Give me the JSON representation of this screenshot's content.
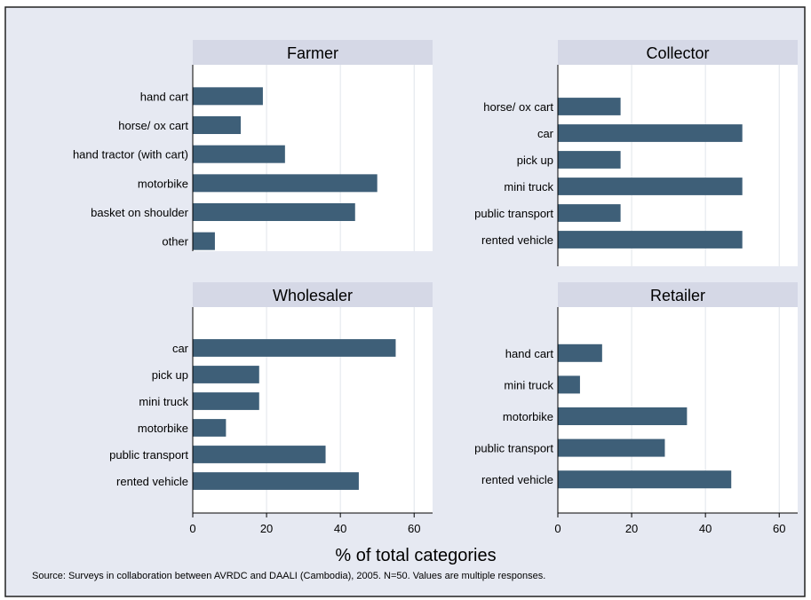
{
  "chart_data": {
    "type": "bar",
    "orientation": "horizontal",
    "xlabel": "% of total categories",
    "note": "Source: Surveys in collaboration between AVRDC and DAALI (Cambodia), 2005. N=50. Values are multiple responses.",
    "xlim": [
      0,
      65
    ],
    "x_ticks": [
      "0",
      "20",
      "40",
      "60"
    ],
    "grid": true,
    "colors": {
      "bar": "#3e5f78",
      "background": "#e6e9f2",
      "plot_area": "#ffffff",
      "panel_title_bg": "#d5d8e6",
      "grid": "#e0e4ea"
    },
    "panels": [
      {
        "title": "Farmer",
        "categories": [
          "hand cart",
          "horse/ ox cart",
          "hand tractor (with cart)",
          "motorbike",
          "basket on shoulder",
          "other"
        ],
        "values": [
          19,
          13,
          25,
          50,
          44,
          6
        ]
      },
      {
        "title": "Collector",
        "categories": [
          "horse/ ox cart",
          "car",
          "pick up",
          "mini truck",
          "public transport",
          "rented vehicle"
        ],
        "values": [
          17,
          50,
          17,
          50,
          17,
          50
        ]
      },
      {
        "title": "Wholesaler",
        "categories": [
          "car",
          "pick up",
          "mini truck",
          "motorbike",
          "public transport",
          "rented vehicle"
        ],
        "values": [
          55,
          18,
          18,
          9,
          36,
          45
        ]
      },
      {
        "title": "Retailer",
        "categories": [
          "hand cart",
          "mini truck",
          "motorbike",
          "public transport",
          "rented vehicle"
        ],
        "values": [
          12,
          6,
          35,
          29,
          47
        ]
      }
    ]
  }
}
